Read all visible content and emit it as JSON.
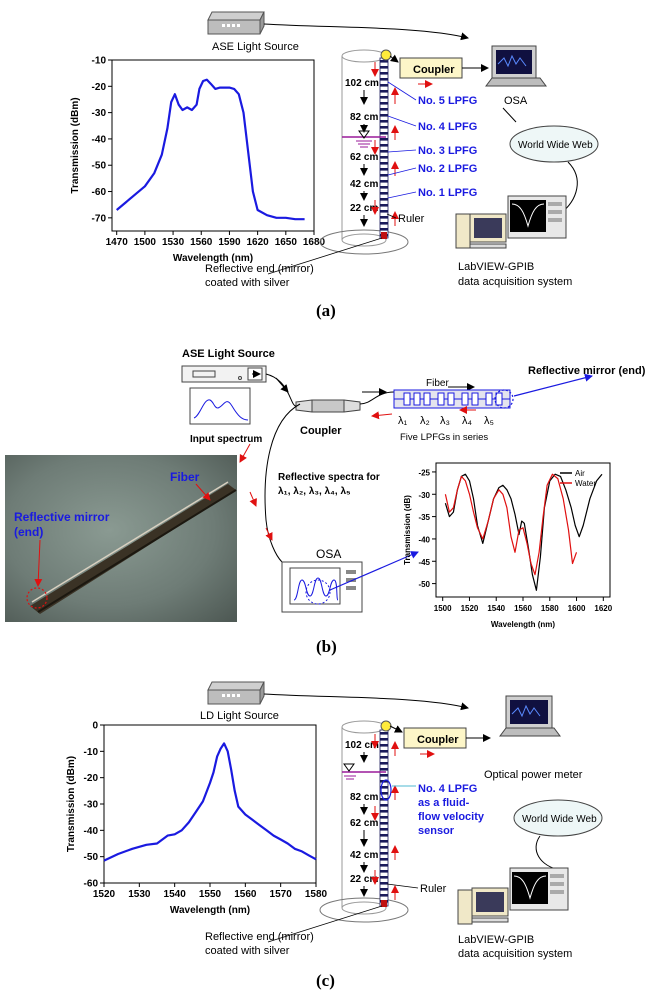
{
  "panel_a": {
    "label": "(a)",
    "source_label": "ASE Light Source",
    "coupler_label": "Coupler",
    "osa_label": "OSA",
    "www_label": "World Wide Web",
    "daq_line1": "LabVIEW-GPIB",
    "daq_line2": "data acquisition system",
    "ruler_label": "Ruler",
    "mirror_line1": "Reflective end (mirror)",
    "mirror_line2": "coated with silver",
    "depths": [
      "102 cm",
      "82 cm",
      "62 cm",
      "42 cm",
      "22 cm"
    ],
    "lpfgs": [
      "No. 5  LPFG",
      "No. 4  LPFG",
      "No. 3  LPFG",
      "No. 2  LPFG",
      "No. 1  LPFG"
    ]
  },
  "panel_b": {
    "label": "(b)",
    "source_label": "ASE Light Source",
    "input_spectrum_label": "Input spectrum",
    "coupler_label": "Coupler",
    "fiber_label": "Fiber",
    "mirror_label": "Reflective mirror (end)",
    "lambdas": [
      "λ₁",
      "λ₂",
      "λ₃",
      "λ₄",
      "λ₅"
    ],
    "lpfg_series_label": "Five LPFGs in series",
    "spectra_line1": "Reflective spectra for",
    "spectra_line2": "λ₁, λ₂, λ₃, λ₄, λ₅",
    "osa_label": "OSA",
    "photo_fiber_label": "Fiber",
    "photo_mirror_line1": "Reflective mirror",
    "photo_mirror_line2": "(end)"
  },
  "panel_c": {
    "label": "(c)",
    "source_label": "LD Light Source",
    "coupler_label": "Coupler",
    "meter_label": "Optical power meter",
    "www_label": "World Wide Web",
    "daq_line1": "LabVIEW-GPIB",
    "daq_line2": "data acquisition system",
    "ruler_label": "Ruler",
    "mirror_line1": "Reflective end (mirror)",
    "mirror_line2": "coated with silver",
    "depths": [
      "102 cm",
      "82 cm",
      "62 cm",
      "42 cm",
      "22 cm"
    ],
    "sensor_line1": "No. 4  LPFG",
    "sensor_line2": "as a fluid-",
    "sensor_line3": "flow velocity",
    "sensor_line4": "sensor"
  },
  "chart_data": [
    {
      "type": "line",
      "title": "",
      "xlabel": "Wavelength (nm)",
      "ylabel": "Transmission (dBm)",
      "xlim": [
        1465,
        1680
      ],
      "ylim": [
        -75,
        -10
      ],
      "xticks": [
        1470,
        1500,
        1530,
        1560,
        1590,
        1620,
        1650,
        1680
      ],
      "yticks": [
        -10,
        -20,
        -30,
        -40,
        -50,
        -60,
        -70
      ],
      "color": "#1a1ae0",
      "series": [
        {
          "name": "ASE",
          "x": [
            1470,
            1480,
            1490,
            1500,
            1510,
            1518,
            1524,
            1528,
            1532,
            1536,
            1540,
            1545,
            1550,
            1555,
            1558,
            1562,
            1566,
            1570,
            1575,
            1580,
            1585,
            1590,
            1595,
            1600,
            1605,
            1610,
            1615,
            1620,
            1630,
            1640,
            1650,
            1660,
            1670
          ],
          "y": [
            -67,
            -64,
            -61,
            -58,
            -53,
            -46,
            -36,
            -26,
            -23,
            -27,
            -29,
            -28,
            -29,
            -27,
            -21,
            -18,
            -17.5,
            -19,
            -21,
            -20.5,
            -20.5,
            -20.5,
            -21,
            -23,
            -30,
            -45,
            -60,
            -67,
            -69,
            -70,
            -70,
            -70.5,
            -70.5
          ]
        }
      ]
    },
    {
      "type": "line",
      "title": "",
      "xlabel": "Wavelength (nm)",
      "ylabel": "Transmission (dB)",
      "xlim": [
        1495,
        1625
      ],
      "ylim": [
        -53,
        -23
      ],
      "xticks": [
        1500,
        1520,
        1540,
        1560,
        1580,
        1600,
        1620
      ],
      "yticks": [
        -25,
        -30,
        -35,
        -40,
        -45,
        -50
      ],
      "legend": "top-right",
      "series": [
        {
          "name": "Air",
          "color": "#000000",
          "x": [
            1502,
            1505,
            1508,
            1511,
            1514,
            1517,
            1520,
            1523,
            1526,
            1530,
            1534,
            1538,
            1542,
            1545,
            1548,
            1551,
            1554,
            1557,
            1559,
            1561,
            1564,
            1567,
            1570,
            1573,
            1576,
            1580,
            1584,
            1588,
            1592,
            1596,
            1599,
            1602,
            1605,
            1610,
            1615,
            1619
          ],
          "y": [
            -32,
            -35,
            -34,
            -29,
            -26,
            -25.5,
            -27,
            -31,
            -37,
            -41,
            -36,
            -31,
            -28.5,
            -28,
            -29,
            -31,
            -34.5,
            -39,
            -36,
            -36.5,
            -42,
            -48,
            -51.5,
            -44,
            -33,
            -27,
            -25.5,
            -26,
            -29,
            -33,
            -37,
            -39.5,
            -37,
            -31,
            -27,
            -25.5
          ]
        },
        {
          "name": "Water",
          "color": "#e01010",
          "x": [
            1502,
            1505,
            1508,
            1511,
            1514,
            1517,
            1520,
            1523,
            1526,
            1530,
            1534,
            1538,
            1542,
            1545,
            1548,
            1551,
            1554,
            1557,
            1560,
            1563,
            1566,
            1569,
            1572,
            1575,
            1578,
            1582,
            1586,
            1590,
            1594,
            1597,
            1600
          ],
          "y": [
            -30,
            -34,
            -33,
            -29,
            -26,
            -27,
            -30,
            -34,
            -37.5,
            -40,
            -36,
            -31,
            -29,
            -30,
            -33,
            -39.5,
            -43,
            -38,
            -37.5,
            -41,
            -45.5,
            -48,
            -43,
            -35,
            -28,
            -25.5,
            -26.5,
            -31,
            -38,
            -45.5,
            -43
          ]
        }
      ]
    },
    {
      "type": "line",
      "title": "",
      "xlabel": "Wavelength (nm)",
      "ylabel": "Transmission (dBm)",
      "xlim": [
        1520,
        1580
      ],
      "ylim": [
        -60,
        0
      ],
      "xticks": [
        1520,
        1530,
        1540,
        1550,
        1560,
        1570,
        1580
      ],
      "yticks": [
        0,
        -10,
        -20,
        -30,
        -40,
        -50,
        -60
      ],
      "color": "#1a1ae0",
      "series": [
        {
          "name": "LD",
          "x": [
            1520,
            1524,
            1528,
            1532,
            1535,
            1538,
            1540,
            1542,
            1544,
            1546,
            1548,
            1550,
            1551,
            1552,
            1553,
            1554,
            1555,
            1556,
            1557,
            1558,
            1560,
            1562,
            1564,
            1566,
            1568,
            1570,
            1572,
            1574,
            1576,
            1578,
            1580
          ],
          "y": [
            -51.5,
            -49,
            -47,
            -45.5,
            -45,
            -42,
            -41.5,
            -40,
            -37,
            -33,
            -29,
            -22,
            -18,
            -12,
            -9,
            -7,
            -10,
            -17,
            -25,
            -31,
            -34,
            -36,
            -38,
            -40,
            -42,
            -43.5,
            -45,
            -47,
            -48,
            -49.5,
            -51
          ]
        }
      ]
    }
  ]
}
